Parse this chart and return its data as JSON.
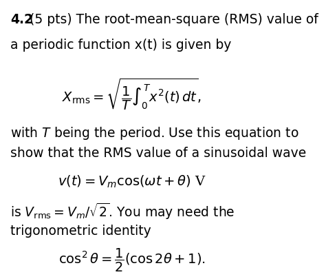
{
  "background_color": "#ffffff",
  "text_color": "#000000",
  "fig_width": 4.74,
  "fig_height": 4.06,
  "line1_bold": "4.2",
  "line1_normal": " (5 pts) The root-mean-square (RMS) value of",
  "line2": "a periodic function x(t) is given by",
  "eq1": "$X_{\\mathrm{rms}} = \\sqrt{\\dfrac{1}{T}\\int_0^T x^2(t)\\, dt},$",
  "line3": "with $T$ being the period. Use this equation to",
  "line4": "show that the RMS value of a sinusoidal wave",
  "eq2": "$v(t) = V_m \\cos(\\omega t + \\theta)$ V",
  "line5_start": "is $V_{\\mathrm{rms}} = V_m/\\sqrt{2}$. You may need the",
  "line6": "trigonometric identity",
  "eq3": "$\\cos^2 \\theta = \\dfrac{1}{2}(\\cos 2\\theta + 1).$",
  "fontsize_text": 13.5,
  "fontsize_eq": 14
}
